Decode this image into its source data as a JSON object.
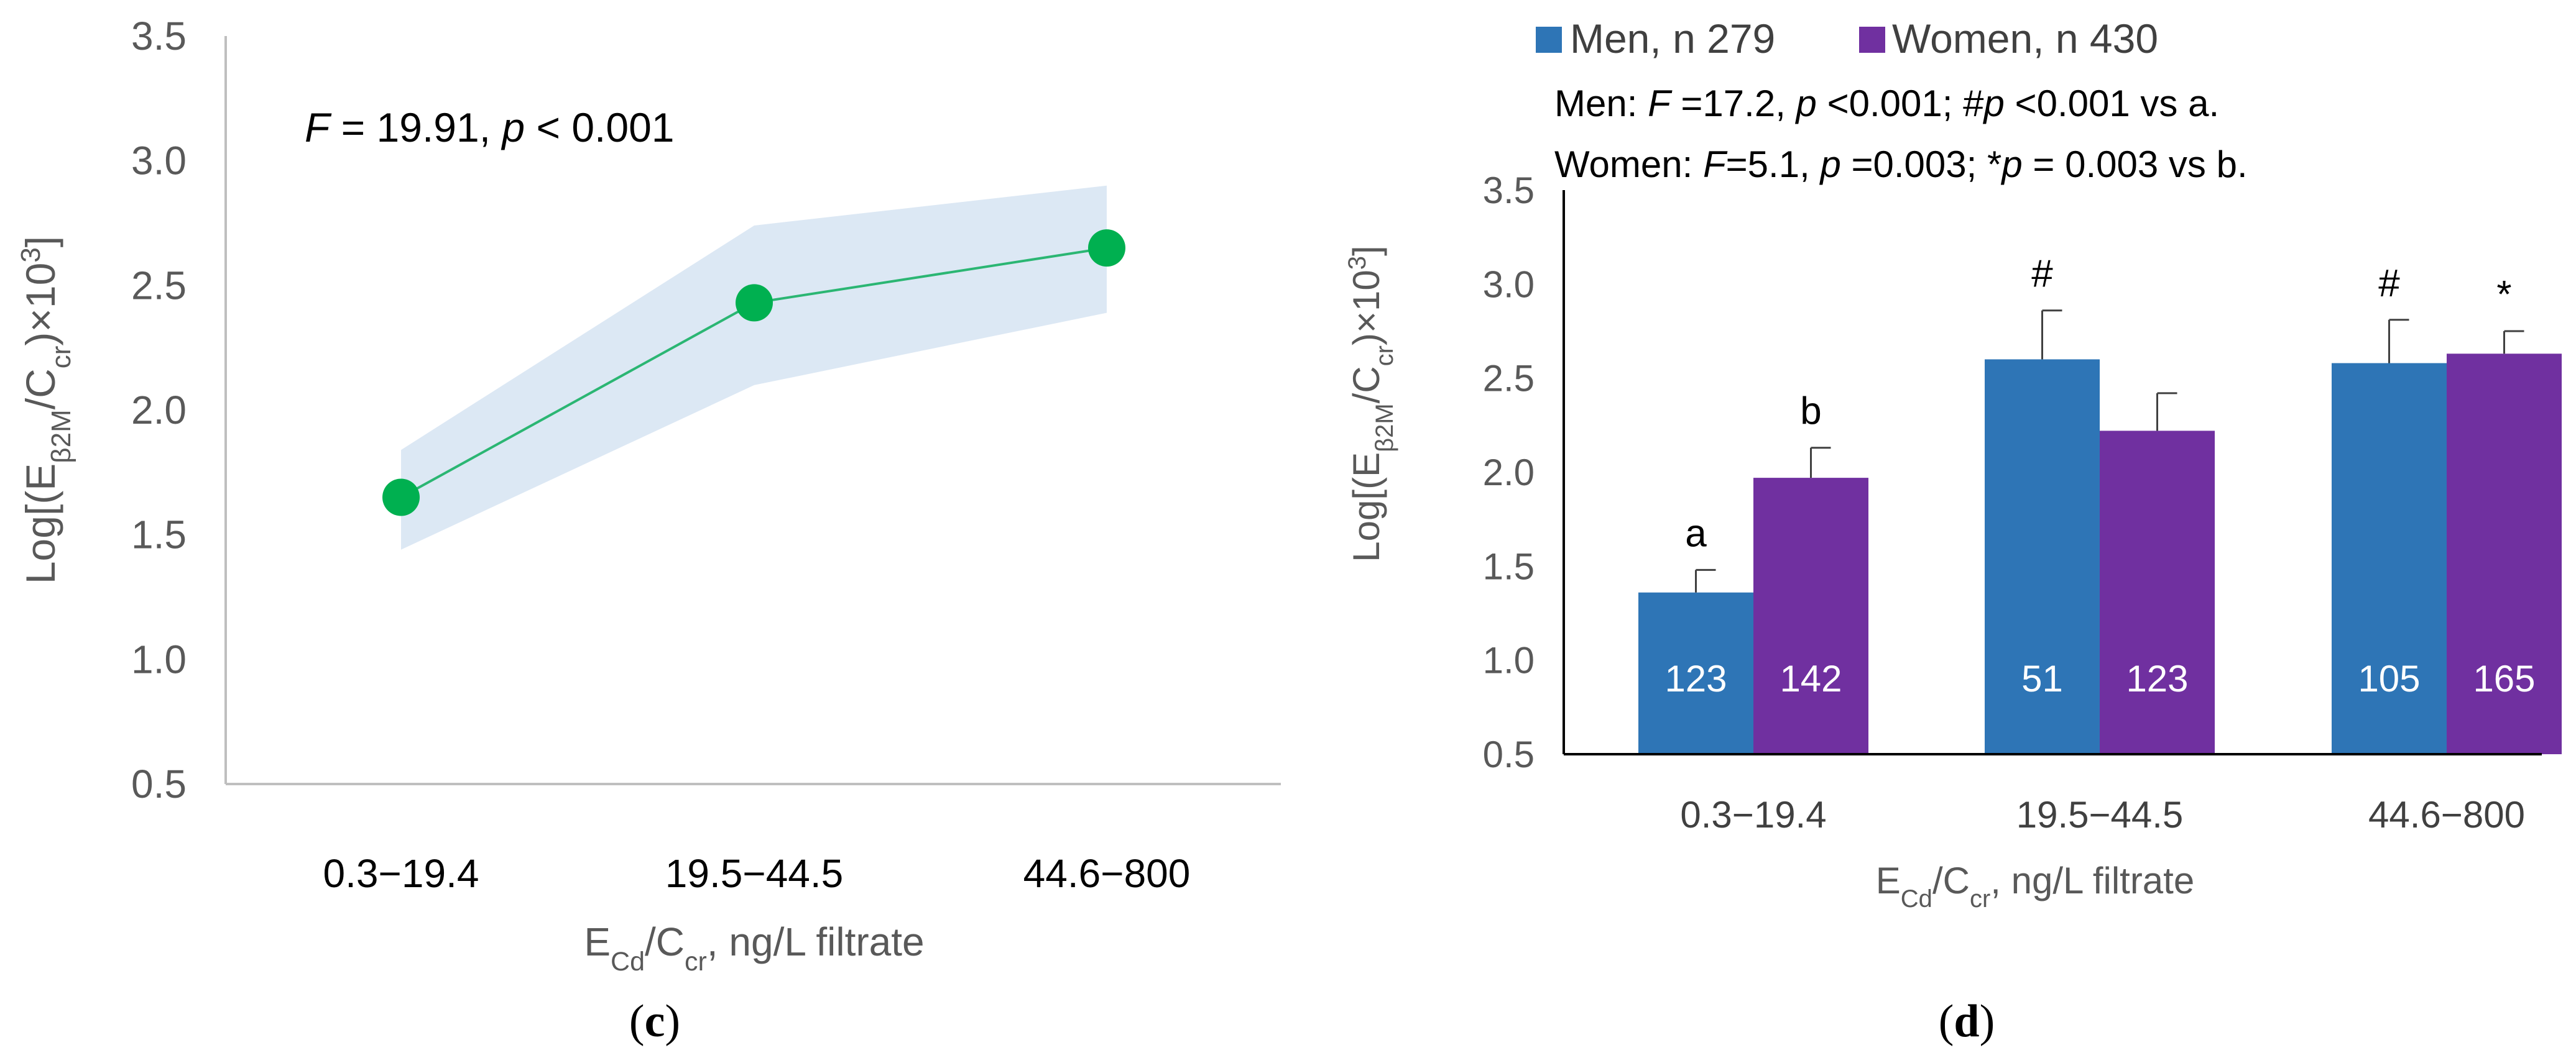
{
  "chart_data": [
    {
      "panel_label": "c",
      "type": "line",
      "categories": [
        "0.3−19.4",
        "19.5−44.5",
        "44.6−800"
      ],
      "values": [
        1.65,
        2.43,
        2.65
      ],
      "ci_upper": [
        1.84,
        2.74,
        2.9
      ],
      "ci_lower": [
        1.44,
        2.1,
        2.39
      ],
      "annotation": {
        "f_label": "F",
        "f_rest": " = 19.91, ",
        "p_label": "p",
        "p_rest": " < 0.001"
      },
      "ylabel": {
        "prefix": "Log[(E",
        "sub1": "β2M",
        "mid": "/C",
        "sub2": "cr",
        "suffix": ")×10",
        "sup": "3",
        "end": "]"
      },
      "xlabel": {
        "prefix": "E",
        "sub1": "Cd",
        "mid": "/C",
        "sub2": "cr",
        "suffix": ", ng/L filtrate"
      },
      "ylim": [
        0.5,
        3.5
      ],
      "yticks": [
        "0.5",
        "1.0",
        "1.5",
        "2.0",
        "2.5",
        "3.0",
        "3.5"
      ],
      "colors": {
        "line": "#2bb673",
        "marker": "#00b050",
        "band": "#dce8f4",
        "axis": "#bfbfbf",
        "tick_text": "#595959"
      }
    },
    {
      "panel_label": "d",
      "type": "bar",
      "categories": [
        "0.3−19.4",
        "19.5−44.5",
        "44.6−800"
      ],
      "series": [
        {
          "name": "Men, n 279",
          "values": [
            1.36,
            2.6,
            2.58
          ],
          "errors": [
            0.12,
            0.26,
            0.23
          ],
          "counts": [
            "123",
            "51",
            "105"
          ],
          "labels": [
            "a",
            "#",
            "#"
          ],
          "color": "#2e75b6"
        },
        {
          "name": "Women, n 430",
          "values": [
            1.97,
            2.22,
            2.63
          ],
          "errors": [
            0.16,
            0.2,
            0.12
          ],
          "counts": [
            "142",
            "123",
            "165"
          ],
          "labels": [
            "b",
            "",
            "*"
          ],
          "color": "#7030a0"
        }
      ],
      "stats": [
        {
          "a": "Men: ",
          "b": "F",
          "c": " =17.2, ",
          "d": "p",
          "e": " <0.001; #",
          "f": "p",
          "g": " <0.001 vs a."
        },
        {
          "a": "Women: ",
          "b": "F",
          "c": "=5.1, ",
          "d": "p",
          "e": " =0.003; *",
          "f": "p",
          "g": " = 0.003 vs b."
        }
      ],
      "ylabel": {
        "prefix": "Log[(E",
        "sub1": "β2M",
        "mid": "/C",
        "sub2": "cr",
        "suffix": ")×10",
        "sup": "3",
        "end": "]"
      },
      "xlabel": {
        "prefix": "E",
        "sub1": "Cd",
        "mid": "/C",
        "sub2": "cr",
        "suffix": ", ng/L filtrate"
      },
      "ylim": [
        0.5,
        3.5
      ],
      "yticks": [
        "0.5",
        "1.0",
        "1.5",
        "2.0",
        "2.5",
        "3.0",
        "3.5"
      ],
      "colors": {
        "axis": "#000000",
        "tick_text": "#595959",
        "count_text": "#ffffff"
      }
    }
  ]
}
